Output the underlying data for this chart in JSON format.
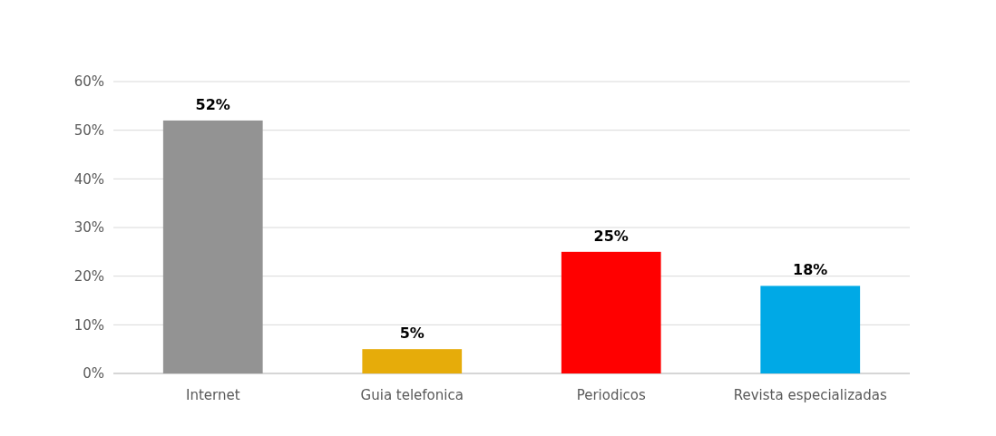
{
  "chart_data": {
    "type": "bar",
    "categories": [
      "Internet",
      "Guia telefonica",
      "Periodicos",
      "Revista especializadas"
    ],
    "values": [
      52,
      5,
      25,
      18
    ],
    "colors": [
      "#939393",
      "#e6ac0a",
      "#ff0000",
      "#00a9e6"
    ],
    "value_labels": [
      "52%",
      "5%",
      "25%",
      "18%"
    ],
    "ylim": [
      0,
      60
    ],
    "yticks": [
      {
        "value": 0,
        "label": "0%"
      },
      {
        "value": 10,
        "label": "10%"
      },
      {
        "value": 20,
        "label": "20%"
      },
      {
        "value": 30,
        "label": "30%"
      },
      {
        "value": 40,
        "label": "40%"
      },
      {
        "value": 50,
        "label": "50%"
      },
      {
        "value": 60,
        "label": "60%"
      }
    ],
    "grid": "y"
  }
}
